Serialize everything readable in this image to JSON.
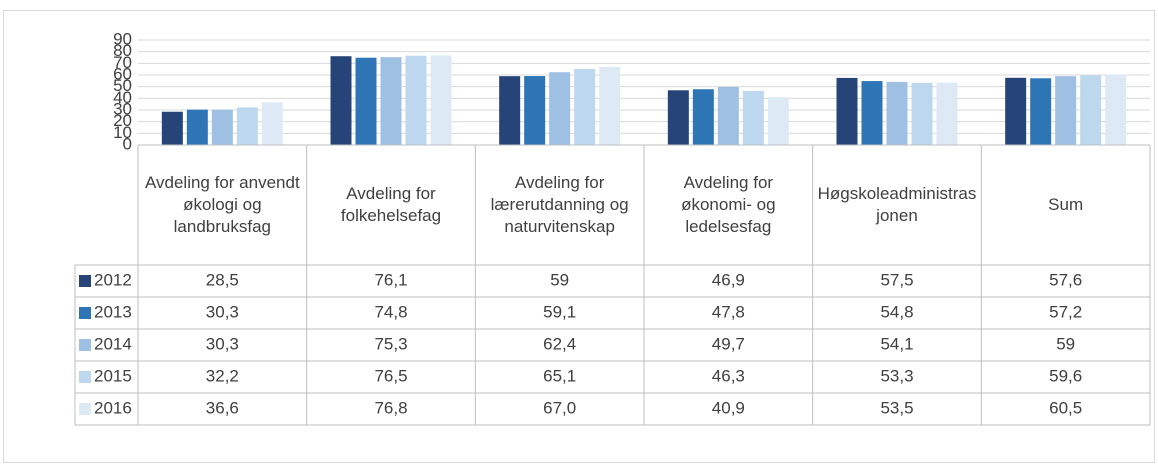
{
  "chart_data": {
    "type": "bar",
    "categories": [
      "Avdeling for anvendt økologi og landbruksfag",
      "Avdeling for folkehelsefag",
      "Avdeling for lærerutdanning og naturvitenskap",
      "Avdeling for økonomi- og ledelsesfag",
      "Høgskoleadministrasjonen",
      "Sum"
    ],
    "series": [
      {
        "name": "2012",
        "color": "#264478",
        "values": [
          28.5,
          76.1,
          59,
          46.9,
          57.5,
          57.6
        ],
        "value_labels": [
          "28,5",
          "76,1",
          "59",
          "46,9",
          "57,5",
          "57,6"
        ]
      },
      {
        "name": "2013",
        "color": "#2e75b6",
        "values": [
          30.3,
          74.8,
          59.1,
          47.8,
          54.8,
          57.2
        ],
        "value_labels": [
          "30,3",
          "74,8",
          "59,1",
          "47,8",
          "54,8",
          "57,2"
        ]
      },
      {
        "name": "2014",
        "color": "#9dc0e3",
        "values": [
          30.3,
          75.3,
          62.4,
          49.7,
          54.1,
          59
        ],
        "value_labels": [
          "30,3",
          "75,3",
          "62,4",
          "49,7",
          "54,1",
          "59"
        ]
      },
      {
        "name": "2015",
        "color": "#bdd7ee",
        "values": [
          32.2,
          76.5,
          65.1,
          46.3,
          53.3,
          59.6
        ],
        "value_labels": [
          "32,2",
          "76,5",
          "65,1",
          "46,3",
          "53,3",
          "59,6"
        ]
      },
      {
        "name": "2016",
        "color": "#ddeaf6",
        "values": [
          36.6,
          76.8,
          67.0,
          40.9,
          53.5,
          60.5
        ],
        "value_labels": [
          "36,6",
          "76,8",
          "67,0",
          "40,9",
          "53,5",
          "60,5"
        ]
      }
    ],
    "ylim": [
      0,
      90
    ],
    "yticks": [
      0,
      10,
      20,
      30,
      40,
      50,
      60,
      70,
      80,
      90
    ],
    "grid": true
  }
}
